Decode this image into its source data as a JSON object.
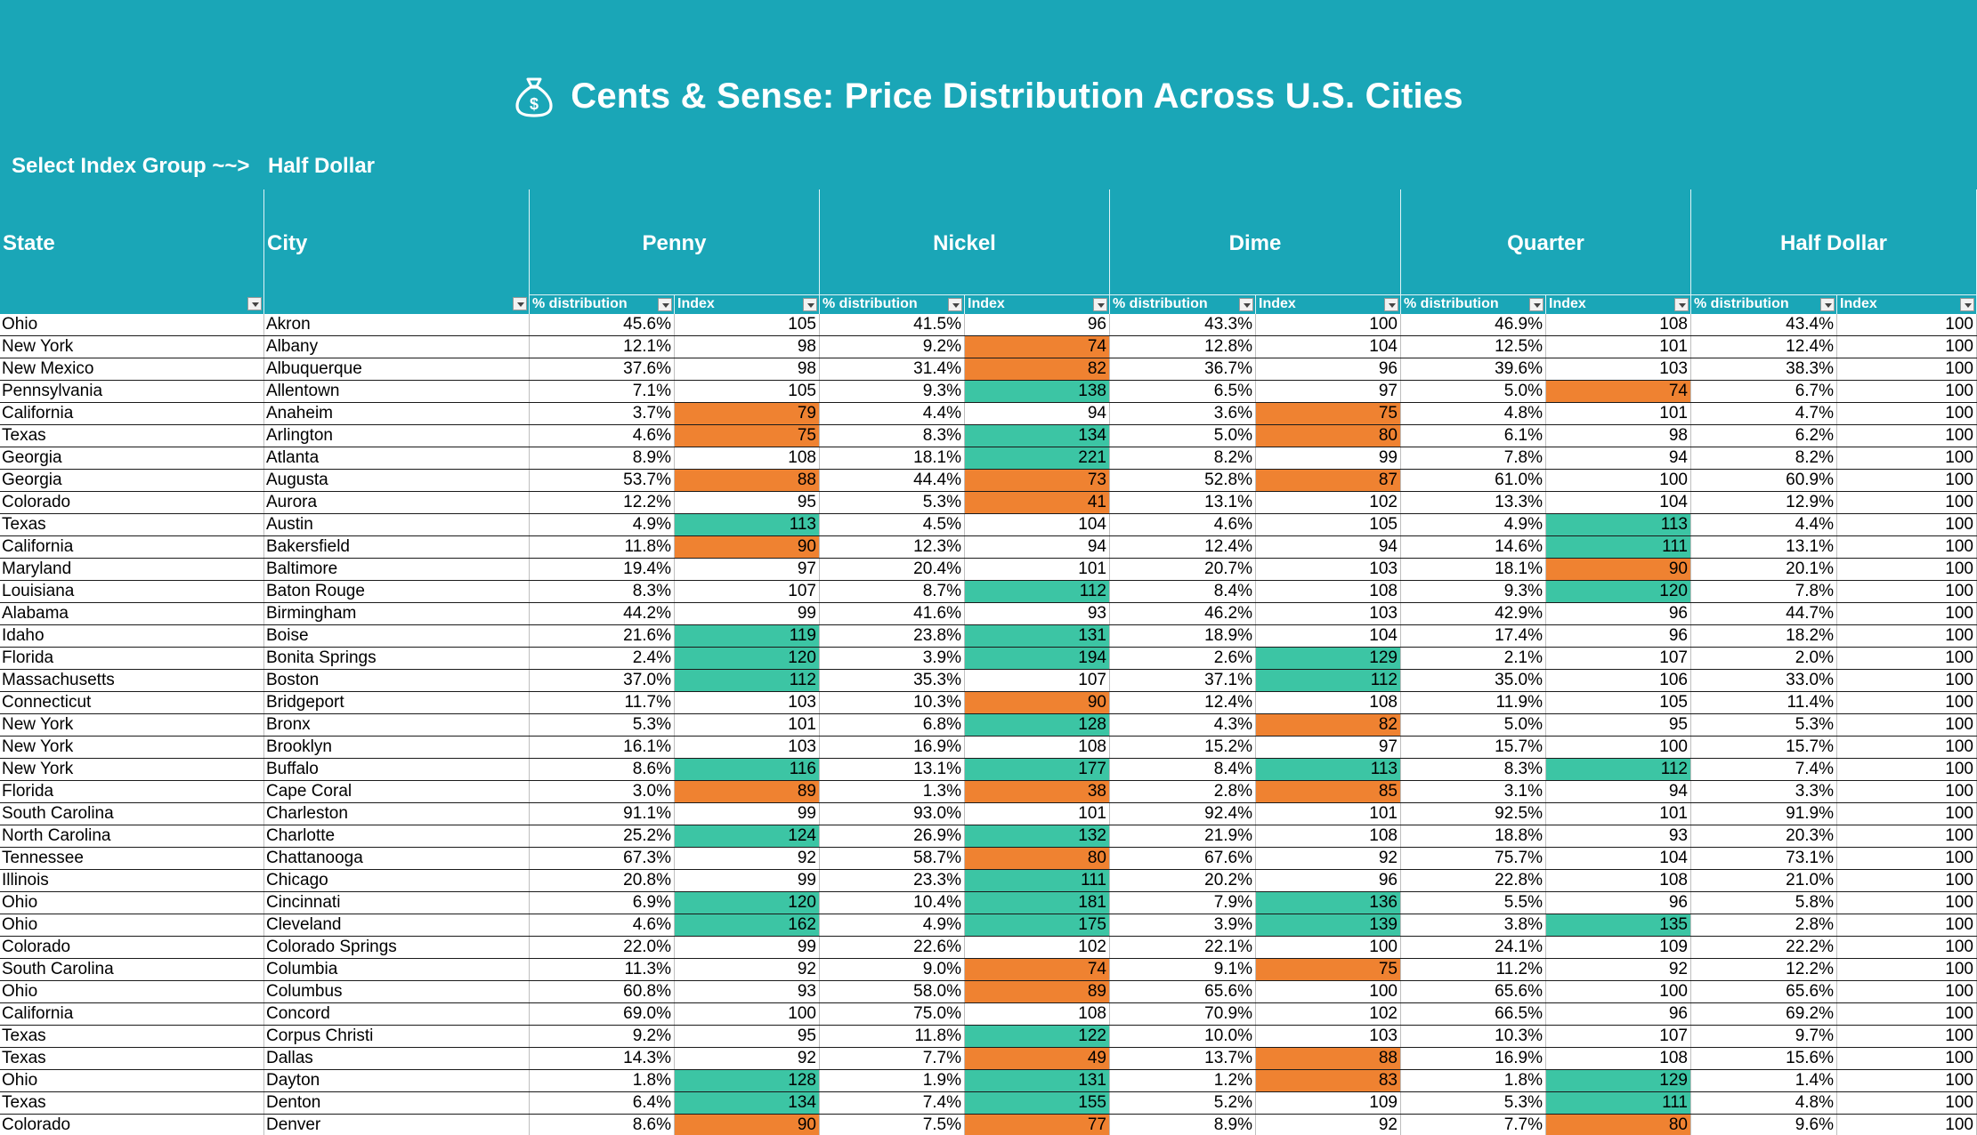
{
  "title": "Cents & Sense: Price Distribution Across U.S. Cities",
  "icon": "money-bag-icon",
  "select": {
    "label": "Select Index Group ~~>",
    "value": "Half Dollar"
  },
  "colors": {
    "header": "#1AA6B7",
    "high": "#3CC5A4",
    "low": "#EF8231"
  },
  "headers": {
    "state": "State",
    "city": "City"
  },
  "groups": [
    "Penny",
    "Nickel",
    "Dime",
    "Quarter",
    "Half Dollar"
  ],
  "subheaders": {
    "dist": "% distribution",
    "index": "Index"
  },
  "rows": [
    {
      "state": "Ohio",
      "city": "Akron",
      "v": [
        [
          "45.6%",
          "105"
        ],
        [
          "41.5%",
          "96"
        ],
        [
          "43.3%",
          "100"
        ],
        [
          "46.9%",
          "108"
        ],
        [
          "43.4%",
          "100"
        ]
      ]
    },
    {
      "state": "New York",
      "city": "Albany",
      "v": [
        [
          "12.1%",
          "98"
        ],
        [
          "9.2%",
          "74"
        ],
        [
          "12.8%",
          "104"
        ],
        [
          "12.5%",
          "101"
        ],
        [
          "12.4%",
          "100"
        ]
      ]
    },
    {
      "state": "New Mexico",
      "city": "Albuquerque",
      "v": [
        [
          "37.6%",
          "98"
        ],
        [
          "31.4%",
          "82"
        ],
        [
          "36.7%",
          "96"
        ],
        [
          "39.6%",
          "103"
        ],
        [
          "38.3%",
          "100"
        ]
      ]
    },
    {
      "state": "Pennsylvania",
      "city": "Allentown",
      "v": [
        [
          "7.1%",
          "105"
        ],
        [
          "9.3%",
          "138"
        ],
        [
          "6.5%",
          "97"
        ],
        [
          "5.0%",
          "74"
        ],
        [
          "6.7%",
          "100"
        ]
      ]
    },
    {
      "state": "California",
      "city": "Anaheim",
      "v": [
        [
          "3.7%",
          "79"
        ],
        [
          "4.4%",
          "94"
        ],
        [
          "3.6%",
          "75"
        ],
        [
          "4.8%",
          "101"
        ],
        [
          "4.7%",
          "100"
        ]
      ]
    },
    {
      "state": "Texas",
      "city": "Arlington",
      "v": [
        [
          "4.6%",
          "75"
        ],
        [
          "8.3%",
          "134"
        ],
        [
          "5.0%",
          "80"
        ],
        [
          "6.1%",
          "98"
        ],
        [
          "6.2%",
          "100"
        ]
      ]
    },
    {
      "state": "Georgia",
      "city": "Atlanta",
      "v": [
        [
          "8.9%",
          "108"
        ],
        [
          "18.1%",
          "221"
        ],
        [
          "8.2%",
          "99"
        ],
        [
          "7.8%",
          "94"
        ],
        [
          "8.2%",
          "100"
        ]
      ]
    },
    {
      "state": "Georgia",
      "city": "Augusta",
      "v": [
        [
          "53.7%",
          "88"
        ],
        [
          "44.4%",
          "73"
        ],
        [
          "52.8%",
          "87"
        ],
        [
          "61.0%",
          "100"
        ],
        [
          "60.9%",
          "100"
        ]
      ]
    },
    {
      "state": "Colorado",
      "city": "Aurora",
      "v": [
        [
          "12.2%",
          "95"
        ],
        [
          "5.3%",
          "41"
        ],
        [
          "13.1%",
          "102"
        ],
        [
          "13.3%",
          "104"
        ],
        [
          "12.9%",
          "100"
        ]
      ]
    },
    {
      "state": "Texas",
      "city": "Austin",
      "v": [
        [
          "4.9%",
          "113"
        ],
        [
          "4.5%",
          "104"
        ],
        [
          "4.6%",
          "105"
        ],
        [
          "4.9%",
          "113"
        ],
        [
          "4.4%",
          "100"
        ]
      ]
    },
    {
      "state": "California",
      "city": "Bakersfield",
      "v": [
        [
          "11.8%",
          "90"
        ],
        [
          "12.3%",
          "94"
        ],
        [
          "12.4%",
          "94"
        ],
        [
          "14.6%",
          "111"
        ],
        [
          "13.1%",
          "100"
        ]
      ]
    },
    {
      "state": "Maryland",
      "city": "Baltimore",
      "v": [
        [
          "19.4%",
          "97"
        ],
        [
          "20.4%",
          "101"
        ],
        [
          "20.7%",
          "103"
        ],
        [
          "18.1%",
          "90"
        ],
        [
          "20.1%",
          "100"
        ]
      ]
    },
    {
      "state": "Louisiana",
      "city": "Baton Rouge",
      "v": [
        [
          "8.3%",
          "107"
        ],
        [
          "8.7%",
          "112"
        ],
        [
          "8.4%",
          "108"
        ],
        [
          "9.3%",
          "120"
        ],
        [
          "7.8%",
          "100"
        ]
      ]
    },
    {
      "state": "Alabama",
      "city": "Birmingham",
      "v": [
        [
          "44.2%",
          "99"
        ],
        [
          "41.6%",
          "93"
        ],
        [
          "46.2%",
          "103"
        ],
        [
          "42.9%",
          "96"
        ],
        [
          "44.7%",
          "100"
        ]
      ]
    },
    {
      "state": "Idaho",
      "city": "Boise",
      "v": [
        [
          "21.6%",
          "119"
        ],
        [
          "23.8%",
          "131"
        ],
        [
          "18.9%",
          "104"
        ],
        [
          "17.4%",
          "96"
        ],
        [
          "18.2%",
          "100"
        ]
      ]
    },
    {
      "state": "Florida",
      "city": "Bonita Springs",
      "v": [
        [
          "2.4%",
          "120"
        ],
        [
          "3.9%",
          "194"
        ],
        [
          "2.6%",
          "129"
        ],
        [
          "2.1%",
          "107"
        ],
        [
          "2.0%",
          "100"
        ]
      ]
    },
    {
      "state": "Massachusetts",
      "city": "Boston",
      "v": [
        [
          "37.0%",
          "112"
        ],
        [
          "35.3%",
          "107"
        ],
        [
          "37.1%",
          "112"
        ],
        [
          "35.0%",
          "106"
        ],
        [
          "33.0%",
          "100"
        ]
      ]
    },
    {
      "state": "Connecticut",
      "city": "Bridgeport",
      "v": [
        [
          "11.7%",
          "103"
        ],
        [
          "10.3%",
          "90"
        ],
        [
          "12.4%",
          "108"
        ],
        [
          "11.9%",
          "105"
        ],
        [
          "11.4%",
          "100"
        ]
      ]
    },
    {
      "state": "New York",
      "city": "Bronx",
      "v": [
        [
          "5.3%",
          "101"
        ],
        [
          "6.8%",
          "128"
        ],
        [
          "4.3%",
          "82"
        ],
        [
          "5.0%",
          "95"
        ],
        [
          "5.3%",
          "100"
        ]
      ]
    },
    {
      "state": "New York",
      "city": "Brooklyn",
      "v": [
        [
          "16.1%",
          "103"
        ],
        [
          "16.9%",
          "108"
        ],
        [
          "15.2%",
          "97"
        ],
        [
          "15.7%",
          "100"
        ],
        [
          "15.7%",
          "100"
        ]
      ]
    },
    {
      "state": "New York",
      "city": "Buffalo",
      "v": [
        [
          "8.6%",
          "116"
        ],
        [
          "13.1%",
          "177"
        ],
        [
          "8.4%",
          "113"
        ],
        [
          "8.3%",
          "112"
        ],
        [
          "7.4%",
          "100"
        ]
      ]
    },
    {
      "state": "Florida",
      "city": "Cape Coral",
      "v": [
        [
          "3.0%",
          "89"
        ],
        [
          "1.3%",
          "38"
        ],
        [
          "2.8%",
          "85"
        ],
        [
          "3.1%",
          "94"
        ],
        [
          "3.3%",
          "100"
        ]
      ]
    },
    {
      "state": "South Carolina",
      "city": "Charleston",
      "v": [
        [
          "91.1%",
          "99"
        ],
        [
          "93.0%",
          "101"
        ],
        [
          "92.4%",
          "101"
        ],
        [
          "92.5%",
          "101"
        ],
        [
          "91.9%",
          "100"
        ]
      ]
    },
    {
      "state": "North Carolina",
      "city": "Charlotte",
      "v": [
        [
          "25.2%",
          "124"
        ],
        [
          "26.9%",
          "132"
        ],
        [
          "21.9%",
          "108"
        ],
        [
          "18.8%",
          "93"
        ],
        [
          "20.3%",
          "100"
        ]
      ]
    },
    {
      "state": "Tennessee",
      "city": "Chattanooga",
      "v": [
        [
          "67.3%",
          "92"
        ],
        [
          "58.7%",
          "80"
        ],
        [
          "67.6%",
          "92"
        ],
        [
          "75.7%",
          "104"
        ],
        [
          "73.1%",
          "100"
        ]
      ]
    },
    {
      "state": "Illinois",
      "city": "Chicago",
      "v": [
        [
          "20.8%",
          "99"
        ],
        [
          "23.3%",
          "111"
        ],
        [
          "20.2%",
          "96"
        ],
        [
          "22.8%",
          "108"
        ],
        [
          "21.0%",
          "100"
        ]
      ]
    },
    {
      "state": "Ohio",
      "city": "Cincinnati",
      "v": [
        [
          "6.9%",
          "120"
        ],
        [
          "10.4%",
          "181"
        ],
        [
          "7.9%",
          "136"
        ],
        [
          "5.5%",
          "96"
        ],
        [
          "5.8%",
          "100"
        ]
      ]
    },
    {
      "state": "Ohio",
      "city": "Cleveland",
      "v": [
        [
          "4.6%",
          "162"
        ],
        [
          "4.9%",
          "175"
        ],
        [
          "3.9%",
          "139"
        ],
        [
          "3.8%",
          "135"
        ],
        [
          "2.8%",
          "100"
        ]
      ]
    },
    {
      "state": "Colorado",
      "city": "Colorado Springs",
      "v": [
        [
          "22.0%",
          "99"
        ],
        [
          "22.6%",
          "102"
        ],
        [
          "22.1%",
          "100"
        ],
        [
          "24.1%",
          "109"
        ],
        [
          "22.2%",
          "100"
        ]
      ]
    },
    {
      "state": "South Carolina",
      "city": "Columbia",
      "v": [
        [
          "11.3%",
          "92"
        ],
        [
          "9.0%",
          "74"
        ],
        [
          "9.1%",
          "75"
        ],
        [
          "11.2%",
          "92"
        ],
        [
          "12.2%",
          "100"
        ]
      ]
    },
    {
      "state": "Ohio",
      "city": "Columbus",
      "v": [
        [
          "60.8%",
          "93"
        ],
        [
          "58.0%",
          "89"
        ],
        [
          "65.6%",
          "100"
        ],
        [
          "65.6%",
          "100"
        ],
        [
          "65.6%",
          "100"
        ]
      ]
    },
    {
      "state": "California",
      "city": "Concord",
      "v": [
        [
          "69.0%",
          "100"
        ],
        [
          "75.0%",
          "108"
        ],
        [
          "70.9%",
          "102"
        ],
        [
          "66.5%",
          "96"
        ],
        [
          "69.2%",
          "100"
        ]
      ]
    },
    {
      "state": "Texas",
      "city": "Corpus Christi",
      "v": [
        [
          "9.2%",
          "95"
        ],
        [
          "11.8%",
          "122"
        ],
        [
          "10.0%",
          "103"
        ],
        [
          "10.3%",
          "107"
        ],
        [
          "9.7%",
          "100"
        ]
      ]
    },
    {
      "state": "Texas",
      "city": "Dallas",
      "v": [
        [
          "14.3%",
          "92"
        ],
        [
          "7.7%",
          "49"
        ],
        [
          "13.7%",
          "88"
        ],
        [
          "16.9%",
          "108"
        ],
        [
          "15.6%",
          "100"
        ]
      ]
    },
    {
      "state": "Ohio",
      "city": "Dayton",
      "v": [
        [
          "1.8%",
          "128"
        ],
        [
          "1.9%",
          "131"
        ],
        [
          "1.2%",
          "83"
        ],
        [
          "1.8%",
          "129"
        ],
        [
          "1.4%",
          "100"
        ]
      ]
    },
    {
      "state": "Texas",
      "city": "Denton",
      "v": [
        [
          "6.4%",
          "134"
        ],
        [
          "7.4%",
          "155"
        ],
        [
          "5.2%",
          "109"
        ],
        [
          "5.3%",
          "111"
        ],
        [
          "4.8%",
          "100"
        ]
      ]
    },
    {
      "state": "Colorado",
      "city": "Denver",
      "v": [
        [
          "8.6%",
          "90"
        ],
        [
          "7.5%",
          "77"
        ],
        [
          "8.9%",
          "92"
        ],
        [
          "7.7%",
          "80"
        ],
        [
          "9.6%",
          "100"
        ]
      ]
    }
  ]
}
